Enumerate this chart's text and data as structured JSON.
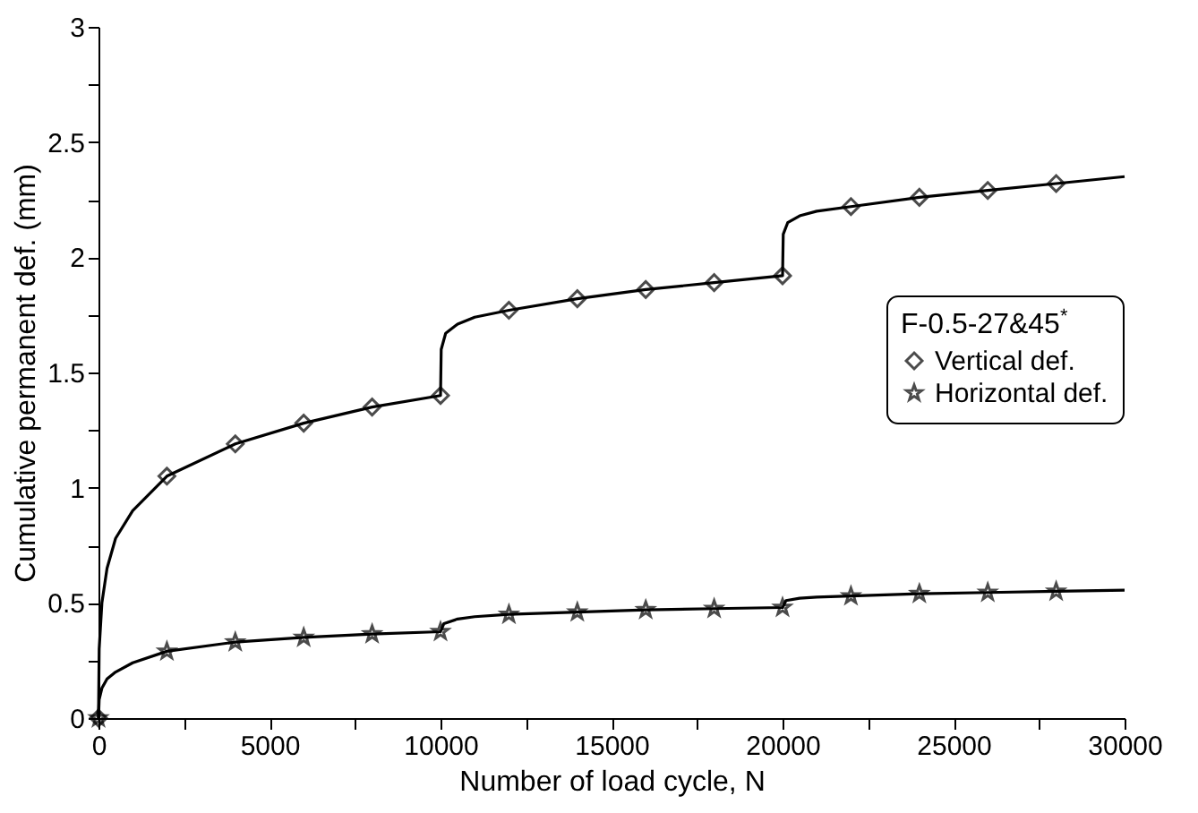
{
  "chart_data": {
    "type": "line",
    "xlabel": "Number of load cycle, N",
    "ylabel": "Cumulative permanent def. (mm)",
    "legend_title": "F-0.5-27&45$^{*}$",
    "xlim": [
      0,
      30000
    ],
    "ylim": [
      0,
      3
    ],
    "xticks": [
      0,
      {
        "value": 2500,
        "label": null
      },
      5000,
      {
        "value": 7500,
        "label": null
      },
      10000,
      {
        "value": 12500,
        "label": null
      },
      15000,
      {
        "value": 17500,
        "label": null
      },
      20000,
      {
        "value": 22500,
        "label": null
      },
      25000,
      {
        "value": 27500,
        "label": null
      },
      30000
    ],
    "yticks": [
      0,
      {
        "value": 0.25,
        "label": null
      },
      0.5,
      {
        "value": 0.75,
        "label": null
      },
      1,
      {
        "value": 1.25,
        "label": null
      },
      1.5,
      {
        "value": 1.75,
        "label": null
      },
      2,
      {
        "value": 2.25,
        "label": null
      },
      2.5,
      {
        "value": 2.75,
        "label": null
      },
      3
    ],
    "grid": false,
    "legend": "right",
    "line_style": "solid",
    "series": [
      {
        "type": "line",
        "marker": "none",
        "color": "#000000",
        "x": [
          0,
          20,
          100,
          250,
          500,
          1000,
          2000,
          4000,
          6000,
          8000,
          10000,
          10020,
          10150,
          10500,
          11000,
          12000,
          14000,
          16000,
          18000,
          20000,
          20020,
          20150,
          20500,
          21000,
          22000,
          24000,
          26000,
          28000,
          30000
        ],
        "values": [
          0,
          0.3,
          0.5,
          0.65,
          0.78,
          0.9,
          1.05,
          1.19,
          1.28,
          1.35,
          1.4,
          1.6,
          1.67,
          1.71,
          1.74,
          1.77,
          1.82,
          1.86,
          1.89,
          1.92,
          2.1,
          2.15,
          2.18,
          2.2,
          2.22,
          2.26,
          2.29,
          2.32,
          2.35
        ]
      },
      {
        "type": "line",
        "marker": "none",
        "color": "#000000",
        "x": [
          0,
          20,
          100,
          250,
          500,
          1000,
          2000,
          4000,
          6000,
          8000,
          10000,
          10100,
          10500,
          11000,
          12000,
          14000,
          16000,
          18000,
          20000,
          20100,
          20500,
          21000,
          22000,
          24000,
          26000,
          28000,
          30000
        ],
        "values": [
          0,
          0.08,
          0.13,
          0.17,
          0.2,
          0.24,
          0.29,
          0.33,
          0.35,
          0.365,
          0.375,
          0.41,
          0.43,
          0.44,
          0.45,
          0.46,
          0.47,
          0.475,
          0.48,
          0.51,
          0.52,
          0.525,
          0.53,
          0.54,
          0.545,
          0.55,
          0.555
        ]
      },
      {
        "type": "scatter",
        "name": "Vertical def.",
        "marker": "diamond",
        "color": "#000000",
        "x": [
          0,
          2000,
          4000,
          6000,
          8000,
          10000,
          12000,
          14000,
          16000,
          18000,
          20000,
          22000,
          24000,
          26000,
          28000
        ],
        "values": [
          0,
          1.05,
          1.19,
          1.28,
          1.35,
          1.4,
          1.77,
          1.82,
          1.86,
          1.89,
          1.92,
          2.22,
          2.26,
          2.29,
          2.32
        ]
      },
      {
        "type": "scatter",
        "name": "Horizontal def.",
        "marker": "star",
        "color": "#000000",
        "x": [
          0,
          2000,
          4000,
          6000,
          8000,
          10000,
          12000,
          14000,
          16000,
          18000,
          20000,
          22000,
          24000,
          26000,
          28000
        ],
        "values": [
          0,
          0.29,
          0.33,
          0.35,
          0.365,
          0.375,
          0.45,
          0.46,
          0.47,
          0.475,
          0.48,
          0.53,
          0.54,
          0.545,
          0.55
        ]
      }
    ]
  }
}
